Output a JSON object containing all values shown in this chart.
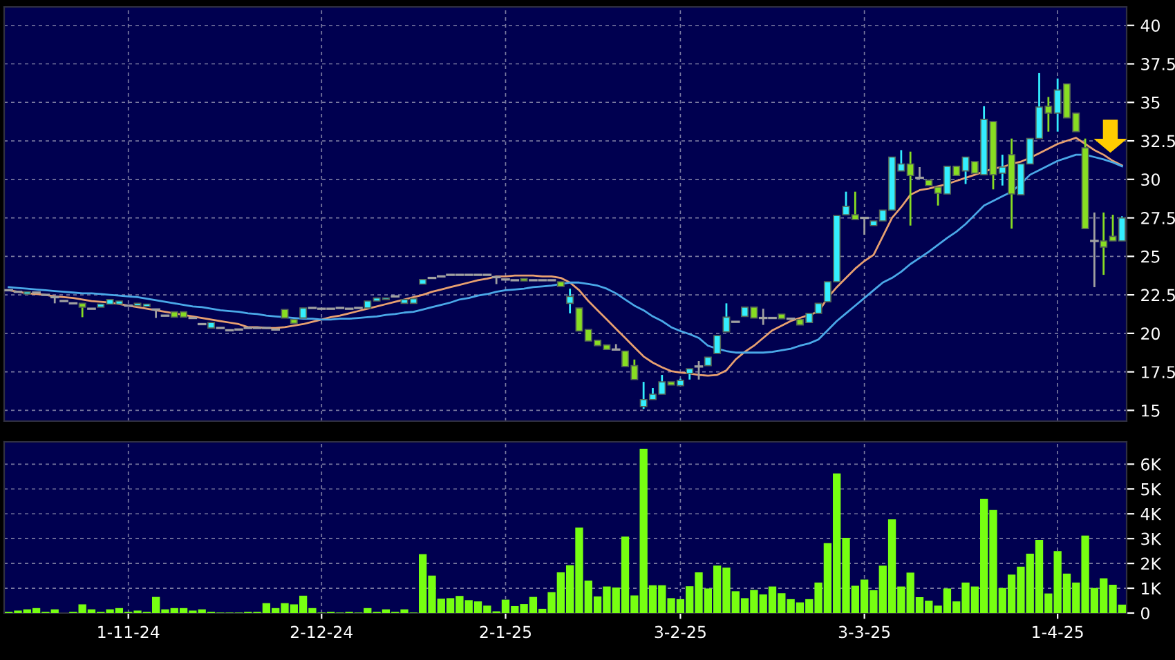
{
  "chart_data": [
    {
      "type": "candlestick",
      "categories": [
        null,
        null,
        null,
        null,
        null,
        null,
        null,
        null,
        null,
        null,
        null,
        null,
        null,
        null,
        null,
        null,
        null,
        null,
        null,
        null,
        null,
        null,
        null,
        null,
        null,
        null,
        null,
        null,
        null,
        null,
        null,
        null,
        null,
        null,
        null,
        null,
        null,
        null,
        null,
        null,
        null,
        null,
        null,
        null,
        null,
        null,
        null,
        null,
        null,
        null,
        null,
        null,
        null,
        null,
        null,
        null,
        null,
        null,
        null,
        null,
        null,
        null,
        null,
        null,
        null,
        null,
        null,
        null,
        null,
        null,
        null,
        null,
        null,
        null,
        null,
        null,
        null,
        null,
        null,
        null,
        null,
        null,
        null,
        null,
        null,
        null,
        null,
        null,
        null,
        null,
        null,
        null,
        null,
        null,
        null,
        null,
        null,
        null,
        null,
        null,
        null,
        null,
        null,
        null,
        null,
        null,
        null,
        null,
        null,
        null,
        null,
        null,
        null,
        null,
        null,
        null,
        null,
        null,
        null,
        null,
        null,
        null
      ],
      "ohlc": [
        [
          22.8,
          22.8,
          22.8,
          22.8
        ],
        [
          22.7,
          22.7,
          22.7,
          22.7
        ],
        [
          22.55,
          22.7,
          22.55,
          22.7
        ],
        [
          22.65,
          22.65,
          22.65,
          22.65
        ],
        [
          22.5,
          22.5,
          22.5,
          22.5
        ],
        [
          22.35,
          22.35,
          21.95,
          22.35
        ],
        [
          22.1,
          22.1,
          22.1,
          22.1
        ],
        [
          21.95,
          21.95,
          21.95,
          21.95
        ],
        [
          21.95,
          21.95,
          21.05,
          21.7
        ],
        [
          21.6,
          21.6,
          21.6,
          21.6
        ],
        [
          21.7,
          21.9,
          21.7,
          21.9
        ],
        [
          21.9,
          22.2,
          21.9,
          22.2
        ],
        [
          21.9,
          22.1,
          21.9,
          22.1
        ],
        [
          21.8,
          21.8,
          21.8,
          21.8
        ],
        [
          21.8,
          21.95,
          21.8,
          21.95
        ],
        [
          21.75,
          21.9,
          21.75,
          21.9
        ],
        [
          21.55,
          21.55,
          21.0,
          21.55
        ],
        [
          21.15,
          21.15,
          21.15,
          21.15
        ],
        [
          21.4,
          21.4,
          21.05,
          21.05
        ],
        [
          21.4,
          21.4,
          21.05,
          21.05
        ],
        [
          21.0,
          21.0,
          21.0,
          21.0
        ],
        [
          20.6,
          20.6,
          20.6,
          20.6
        ],
        [
          20.35,
          20.7,
          20.35,
          20.7
        ],
        [
          20.35,
          20.35,
          20.35,
          20.35
        ],
        [
          20.2,
          20.2,
          20.2,
          20.2
        ],
        [
          20.25,
          20.25,
          20.25,
          20.25
        ],
        [
          20.35,
          20.35,
          20.35,
          20.35
        ],
        [
          20.35,
          20.35,
          20.35,
          20.35
        ],
        [
          20.35,
          20.35,
          20.35,
          20.35
        ],
        [
          20.25,
          20.25,
          20.25,
          20.25
        ],
        [
          21.55,
          21.55,
          21.0,
          21.0
        ],
        [
          20.9,
          20.9,
          20.65,
          20.65
        ],
        [
          21.0,
          21.65,
          21.0,
          21.65
        ],
        [
          21.65,
          21.65,
          21.65,
          21.65
        ],
        [
          21.6,
          21.6,
          21.6,
          21.6
        ],
        [
          21.6,
          21.6,
          21.6,
          21.6
        ],
        [
          21.65,
          21.65,
          21.65,
          21.65
        ],
        [
          21.6,
          21.6,
          21.6,
          21.6
        ],
        [
          21.65,
          21.65,
          21.65,
          21.65
        ],
        [
          21.65,
          22.1,
          21.65,
          22.1
        ],
        [
          22.1,
          22.3,
          22.1,
          22.3
        ],
        [
          22.2,
          22.3,
          22.2,
          22.3
        ],
        [
          22.4,
          22.4,
          22.4,
          22.4
        ],
        [
          21.95,
          22.2,
          21.95,
          22.2
        ],
        [
          21.95,
          22.25,
          21.95,
          22.25
        ],
        [
          23.2,
          23.5,
          23.2,
          23.5
        ],
        [
          23.6,
          23.6,
          23.6,
          23.6
        ],
        [
          23.7,
          23.7,
          23.7,
          23.7
        ],
        [
          23.8,
          23.8,
          23.8,
          23.8
        ],
        [
          23.8,
          23.8,
          23.8,
          23.8
        ],
        [
          23.8,
          23.8,
          23.8,
          23.8
        ],
        [
          23.8,
          23.8,
          23.8,
          23.8
        ],
        [
          23.8,
          23.8,
          23.8,
          23.8
        ],
        [
          23.65,
          23.65,
          23.2,
          23.65
        ],
        [
          23.5,
          23.5,
          23.5,
          23.5
        ],
        [
          23.45,
          23.45,
          23.45,
          23.45
        ],
        [
          23.55,
          23.55,
          23.4,
          23.4
        ],
        [
          23.45,
          23.45,
          23.45,
          23.45
        ],
        [
          23.45,
          23.45,
          23.45,
          23.45
        ],
        [
          23.45,
          23.45,
          23.45,
          23.45
        ],
        [
          23.35,
          23.35,
          23.05,
          23.05
        ],
        [
          21.95,
          22.9,
          21.3,
          22.4
        ],
        [
          21.65,
          21.65,
          20.15,
          20.15
        ],
        [
          20.25,
          20.25,
          19.5,
          19.5
        ],
        [
          19.55,
          19.55,
          19.2,
          19.2
        ],
        [
          19.25,
          19.25,
          18.95,
          18.95
        ],
        [
          18.95,
          19.3,
          18.95,
          18.95
        ],
        [
          18.85,
          18.85,
          17.85,
          17.85
        ],
        [
          17.9,
          18.3,
          17.0,
          17.0
        ],
        [
          15.25,
          16.85,
          15.1,
          15.7
        ],
        [
          15.7,
          16.45,
          15.7,
          16.05
        ],
        [
          16.05,
          17.3,
          16.05,
          16.85
        ],
        [
          16.85,
          16.85,
          16.65,
          16.65
        ],
        [
          16.6,
          17.05,
          16.6,
          16.95
        ],
        [
          17.4,
          17.7,
          17.0,
          17.7
        ],
        [
          17.85,
          18.2,
          17.0,
          17.85
        ],
        [
          17.9,
          18.45,
          17.9,
          18.45
        ],
        [
          18.7,
          19.85,
          18.7,
          19.85
        ],
        [
          20.1,
          21.95,
          20.1,
          21.05
        ],
        [
          20.75,
          20.75,
          20.75,
          20.75
        ],
        [
          21.1,
          21.7,
          21.1,
          21.7
        ],
        [
          21.7,
          21.7,
          21.0,
          21.0
        ],
        [
          21.0,
          21.6,
          20.55,
          21.0
        ],
        [
          21.0,
          21.0,
          21.0,
          21.0
        ],
        [
          21.25,
          21.25,
          20.95,
          20.95
        ],
        [
          20.95,
          20.95,
          20.95,
          20.95
        ],
        [
          20.9,
          20.9,
          20.55,
          20.55
        ],
        [
          20.7,
          21.3,
          20.7,
          21.3
        ],
        [
          21.3,
          21.95,
          21.3,
          21.95
        ],
        [
          22.05,
          23.35,
          22.05,
          23.35
        ],
        [
          23.35,
          27.65,
          23.35,
          27.65
        ],
        [
          27.7,
          29.2,
          27.7,
          28.25
        ],
        [
          27.7,
          29.2,
          27.4,
          27.4
        ],
        [
          27.5,
          27.5,
          26.4,
          27.5
        ],
        [
          27.0,
          27.3,
          27.0,
          27.3
        ],
        [
          27.3,
          28.0,
          27.3,
          28.0
        ],
        [
          28.0,
          31.45,
          28.0,
          31.45
        ],
        [
          30.55,
          31.9,
          30.55,
          31.0
        ],
        [
          31.0,
          31.8,
          27.0,
          30.25
        ],
        [
          30.1,
          30.8,
          30.1,
          30.1
        ],
        [
          29.95,
          29.95,
          29.6,
          29.6
        ],
        [
          29.5,
          29.5,
          28.3,
          29.1
        ],
        [
          29.05,
          30.85,
          29.05,
          30.85
        ],
        [
          30.85,
          30.85,
          30.25,
          30.25
        ],
        [
          30.55,
          31.45,
          29.7,
          31.45
        ],
        [
          31.15,
          31.15,
          30.4,
          30.4
        ],
        [
          30.3,
          34.75,
          30.3,
          33.9
        ],
        [
          33.75,
          33.75,
          29.35,
          30.3
        ],
        [
          30.4,
          31.6,
          29.6,
          30.8
        ],
        [
          31.6,
          32.65,
          26.8,
          29.05
        ],
        [
          29.0,
          31.0,
          29.0,
          31.0
        ],
        [
          31.0,
          32.65,
          31.0,
          32.65
        ],
        [
          32.65,
          36.9,
          32.65,
          34.7
        ],
        [
          34.75,
          35.35,
          33.1,
          34.3
        ],
        [
          34.3,
          36.55,
          33.1,
          35.8
        ],
        [
          36.2,
          36.2,
          34.0,
          34.0
        ],
        [
          34.3,
          34.3,
          33.1,
          33.1
        ],
        [
          32.05,
          32.65,
          26.8,
          26.8
        ],
        [
          26.0,
          27.85,
          23.0,
          26.0
        ],
        [
          26.0,
          27.85,
          23.8,
          25.6
        ],
        [
          26.3,
          27.7,
          26.0,
          26.0
        ],
        [
          26.0,
          27.6,
          26.0,
          27.5
        ]
      ],
      "colors": [
        "#a0a0a0",
        "#a0a0a0",
        "#33eeff",
        "#a0a0a0",
        "#a0a0a0",
        "#a0a0a0",
        "#a0a0a0",
        "#a0a0a0",
        "#88dd22",
        "#a0a0a0",
        "#33eeff",
        "#33eeff",
        "#33eeff",
        "#a0a0a0",
        "#33eeff",
        "#33eeff",
        "#a0a0a0",
        "#a0a0a0",
        "#88dd22",
        "#88dd22",
        "#a0a0a0",
        "#a0a0a0",
        "#33eeff",
        "#a0a0a0",
        "#a0a0a0",
        "#a0a0a0",
        "#a0a0a0",
        "#a0a0a0",
        "#a0a0a0",
        "#a0a0a0",
        "#88dd22",
        "#88dd22",
        "#33eeff",
        "#a0a0a0",
        "#a0a0a0",
        "#a0a0a0",
        "#a0a0a0",
        "#a0a0a0",
        "#a0a0a0",
        "#33eeff",
        "#33eeff",
        "#33eeff",
        "#a0a0a0",
        "#33eeff",
        "#33eeff",
        "#33eeff",
        "#a0a0a0",
        "#a0a0a0",
        "#a0a0a0",
        "#a0a0a0",
        "#a0a0a0",
        "#a0a0a0",
        "#a0a0a0",
        "#a0a0a0",
        "#a0a0a0",
        "#a0a0a0",
        "#88dd22",
        "#a0a0a0",
        "#a0a0a0",
        "#a0a0a0",
        "#88dd22",
        "#33eeff",
        "#88dd22",
        "#88dd22",
        "#88dd22",
        "#88dd22",
        "#a0a0a0",
        "#88dd22",
        "#88dd22",
        "#33eeff",
        "#33eeff",
        "#33eeff",
        "#88dd22",
        "#33eeff",
        "#33eeff",
        "#a0a0a0",
        "#33eeff",
        "#33eeff",
        "#33eeff",
        "#a0a0a0",
        "#33eeff",
        "#88dd22",
        "#a0a0a0",
        "#a0a0a0",
        "#88dd22",
        "#a0a0a0",
        "#88dd22",
        "#33eeff",
        "#33eeff",
        "#33eeff",
        "#33eeff",
        "#33eeff",
        "#88dd22",
        "#a0a0a0",
        "#33eeff",
        "#33eeff",
        "#33eeff",
        "#33eeff",
        "#88dd22",
        "#a0a0a0",
        "#88dd22",
        "#88dd22",
        "#33eeff",
        "#88dd22",
        "#33eeff",
        "#88dd22",
        "#33eeff",
        "#88dd22",
        "#33eeff",
        "#88dd22",
        "#33eeff",
        "#33eeff",
        "#33eeff",
        "#88dd22",
        "#33eeff",
        "#88dd22",
        "#88dd22",
        "#88dd22",
        "#a0a0a0",
        "#88dd22",
        "#88dd22",
        "#33eeff"
      ],
      "series": [
        {
          "type": "line",
          "color": "#e8a070",
          "values": [
            22.8,
            22.7,
            22.6,
            22.55,
            22.5,
            22.4,
            22.35,
            22.3,
            22.2,
            22.1,
            22.05,
            22.0,
            21.9,
            21.8,
            21.7,
            21.6,
            21.5,
            21.4,
            21.3,
            21.2,
            21.1,
            21.0,
            20.9,
            20.8,
            20.7,
            20.6,
            20.4,
            20.4,
            20.35,
            20.35,
            20.4,
            20.5,
            20.6,
            20.75,
            20.9,
            21.05,
            21.15,
            21.3,
            21.45,
            21.6,
            21.75,
            21.9,
            22.05,
            22.2,
            22.35,
            22.5,
            22.7,
            22.85,
            23.0,
            23.15,
            23.3,
            23.45,
            23.55,
            23.7,
            23.7,
            23.75,
            23.75,
            23.75,
            23.7,
            23.7,
            23.6,
            23.3,
            22.8,
            22.1,
            21.5,
            20.9,
            20.3,
            19.7,
            19.1,
            18.5,
            18.1,
            17.8,
            17.55,
            17.45,
            17.4,
            17.3,
            17.25,
            17.3,
            17.6,
            18.3,
            18.8,
            19.2,
            19.7,
            20.2,
            20.5,
            20.8,
            21.0,
            21.2,
            21.4,
            22.3,
            23.0,
            23.6,
            24.2,
            24.7,
            25.1,
            26.3,
            27.5,
            28.2,
            29.0,
            29.3,
            29.4,
            29.55,
            29.7,
            29.9,
            30.1,
            30.3,
            30.5,
            30.7,
            30.8,
            31.0,
            31.15,
            31.4,
            31.7,
            32.0,
            32.3,
            32.5,
            32.7,
            32.3,
            31.9,
            31.6,
            31.2,
            30.9
          ]
        },
        {
          "type": "line",
          "color": "#4aa8e8",
          "values": [
            23.0,
            22.95,
            22.9,
            22.85,
            22.8,
            22.75,
            22.7,
            22.65,
            22.6,
            22.6,
            22.55,
            22.5,
            22.45,
            22.4,
            22.35,
            22.25,
            22.15,
            22.05,
            21.95,
            21.85,
            21.75,
            21.7,
            21.6,
            21.5,
            21.45,
            21.4,
            21.3,
            21.25,
            21.15,
            21.1,
            21.05,
            21.0,
            20.95,
            20.95,
            20.9,
            20.9,
            20.95,
            20.95,
            21.0,
            21.05,
            21.1,
            21.2,
            21.25,
            21.35,
            21.4,
            21.55,
            21.7,
            21.85,
            22.0,
            22.2,
            22.3,
            22.45,
            22.55,
            22.7,
            22.8,
            22.85,
            22.9,
            23.0,
            23.05,
            23.1,
            23.2,
            23.3,
            23.3,
            23.2,
            23.1,
            22.9,
            22.6,
            22.2,
            21.8,
            21.5,
            21.1,
            20.8,
            20.4,
            20.15,
            19.95,
            19.7,
            19.2,
            19.0,
            18.85,
            18.75,
            18.75,
            18.75,
            18.75,
            18.8,
            18.9,
            19.0,
            19.2,
            19.35,
            19.6,
            20.2,
            20.8,
            21.3,
            21.8,
            22.3,
            22.8,
            23.3,
            23.6,
            24.0,
            24.5,
            24.9,
            25.3,
            25.75,
            26.2,
            26.6,
            27.1,
            27.7,
            28.3,
            28.6,
            28.9,
            29.2,
            29.7,
            30.3,
            30.6,
            30.9,
            31.2,
            31.4,
            31.6,
            31.6,
            31.45,
            31.3,
            31.1,
            30.85
          ]
        }
      ],
      "ylim": [
        14.3,
        41.2
      ],
      "yticks": [
        15,
        17.5,
        20,
        22.5,
        25,
        27.5,
        30,
        32.5,
        35,
        37.5,
        40
      ],
      "grid": true,
      "tick_labels": "y"
    },
    {
      "type": "bar",
      "categories": [
        null,
        null,
        null,
        null,
        null,
        null,
        null,
        null,
        null,
        null,
        null,
        null,
        null,
        "1-11-24",
        null,
        null,
        null,
        null,
        null,
        null,
        null,
        null,
        null,
        null,
        null,
        null,
        null,
        null,
        null,
        null,
        null,
        null,
        null,
        null,
        "2-12-24",
        null,
        null,
        null,
        null,
        null,
        null,
        null,
        null,
        null,
        null,
        null,
        null,
        null,
        null,
        null,
        null,
        null,
        null,
        null,
        "2-1-25",
        null,
        null,
        null,
        null,
        null,
        null,
        null,
        null,
        null,
        null,
        null,
        null,
        null,
        null,
        null,
        null,
        null,
        null,
        "3-2-25",
        null,
        null,
        null,
        null,
        null,
        null,
        null,
        null,
        null,
        null,
        null,
        null,
        null,
        null,
        null,
        null,
        null,
        null,
        null,
        "3-3-25",
        null,
        null,
        null,
        null,
        null,
        null,
        null,
        null,
        null,
        null,
        null,
        null,
        null,
        null,
        null,
        null,
        null,
        null,
        null,
        null,
        "1-4-25",
        null,
        null,
        null,
        null,
        null,
        null,
        null
      ],
      "values": [
        0.05,
        0.1,
        0.15,
        0.2,
        0.05,
        0.15,
        0,
        0.05,
        0.35,
        0.15,
        0.05,
        0.15,
        0.2,
        0.05,
        0.1,
        0.05,
        0.65,
        0.15,
        0.2,
        0.2,
        0.1,
        0.15,
        0.05,
        0.02,
        0.02,
        0.02,
        0.05,
        0.05,
        0.4,
        0.2,
        0.4,
        0.35,
        0.7,
        0.2,
        0.02,
        0.05,
        0.02,
        0.05,
        0.02,
        0.2,
        0.05,
        0.15,
        0.05,
        0.15,
        0.02,
        2.37,
        1.51,
        0.58,
        0.6,
        0.69,
        0.52,
        0.47,
        0.3,
        0.07,
        0.54,
        0.28,
        0.36,
        0.65,
        0.17,
        0.84,
        1.64,
        1.93,
        3.44,
        1.31,
        0.67,
        1.07,
        1.03,
        3.08,
        0.71,
        6.62,
        1.12,
        1.12,
        0.6,
        0.56,
        1.08,
        1.64,
        0.99,
        1.91,
        1.83,
        0.88,
        0.6,
        0.93,
        0.75,
        1.07,
        0.8,
        0.56,
        0.43,
        0.56,
        1.23,
        2.82,
        5.63,
        3.03,
        1.1,
        1.35,
        0.92,
        1.91,
        3.78,
        1.07,
        1.63,
        0.64,
        0.5,
        0.3,
        0.99,
        0.47,
        1.23,
        1.07,
        4.6,
        4.15,
        1.01,
        1.55,
        1.87,
        2.39,
        2.95,
        0.79,
        2.5,
        1.59,
        1.23,
        3.12,
        1.01,
        1.4,
        1.14,
        0.34
      ],
      "color": "#77ff11",
      "ylim": [
        0,
        6.9
      ],
      "yticks": [
        0,
        {
          "value": 1,
          "label": "1K"
        },
        {
          "value": 2,
          "label": "2K"
        },
        {
          "value": 3,
          "label": "3K"
        },
        {
          "value": 4,
          "label": "4K"
        },
        {
          "value": 5,
          "label": "5K"
        },
        {
          "value": 6,
          "label": "6K"
        }
      ],
      "grid": true
    }
  ]
}
